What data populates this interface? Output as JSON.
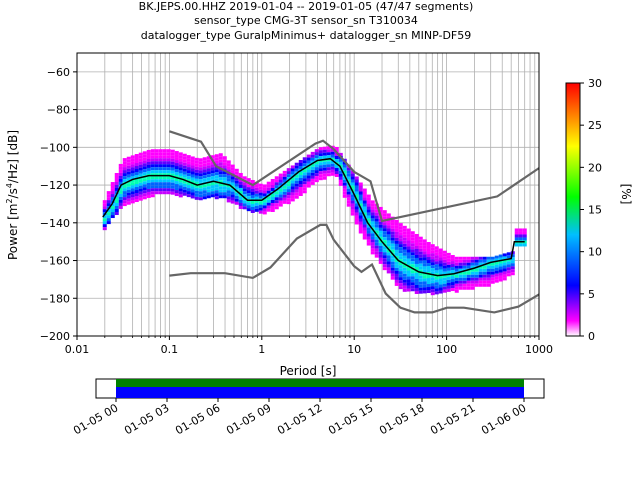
{
  "title_lines": [
    "BK.JEPS.00.HHZ   2019-01-04 -- 2019-01-05  (47/47 segments)",
    "sensor_type CMG-3T sensor_sn T310034",
    "datalogger_type GuralpMinimus+ datalogger_sn MINP-DF59"
  ],
  "chart_data": {
    "type": "heatmap",
    "description_of_axes": "log period vs power",
    "xlabel": "Period [s]",
    "ylabel": "Power [m²/s⁴/Hz] [dB]",
    "xscale": "log",
    "xlim": [
      0.01,
      1000
    ],
    "ylim": [
      -200,
      -50
    ],
    "xticks": [
      {
        "value": 0.01,
        "label": "0.01"
      },
      {
        "value": 0.1,
        "label": "0.1"
      },
      {
        "value": 1,
        "label": "1"
      },
      {
        "value": 10,
        "label": "10"
      },
      {
        "value": 100,
        "label": "100"
      },
      {
        "value": 1000,
        "label": "1000"
      }
    ],
    "yticks": [
      -60,
      -80,
      -100,
      -120,
      -140,
      -160,
      -180,
      -200
    ],
    "grid": true,
    "colorbar": {
      "label": "[%]",
      "min": 0,
      "max": 30,
      "ticks": [
        0,
        5,
        10,
        15,
        20,
        25,
        30
      ],
      "colormap_stops": [
        "#ffffff",
        "#ff00ff",
        "#0000ff",
        "#00bfff",
        "#00ff00",
        "#ffff00",
        "#ff0000"
      ]
    },
    "mean_curve": {
      "color": "#000000",
      "points": [
        [
          0.019,
          -137
        ],
        [
          0.024,
          -130
        ],
        [
          0.03,
          -120
        ],
        [
          0.04,
          -117
        ],
        [
          0.06,
          -115
        ],
        [
          0.1,
          -115
        ],
        [
          0.14,
          -117
        ],
        [
          0.2,
          -120
        ],
        [
          0.3,
          -118
        ],
        [
          0.45,
          -120
        ],
        [
          0.7,
          -128
        ],
        [
          1,
          -128
        ],
        [
          1.5,
          -122
        ],
        [
          2.5,
          -113
        ],
        [
          4,
          -107
        ],
        [
          5.5,
          -106
        ],
        [
          7,
          -110
        ],
        [
          10,
          -125
        ],
        [
          14,
          -140
        ],
        [
          20,
          -150
        ],
        [
          30,
          -160
        ],
        [
          50,
          -166
        ],
        [
          80,
          -168
        ],
        [
          120,
          -167
        ],
        [
          200,
          -164
        ],
        [
          300,
          -161
        ],
        [
          500,
          -159
        ],
        [
          540,
          -150
        ],
        [
          700,
          -150
        ]
      ]
    },
    "density_band": {
      "upper": [
        [
          0.019,
          -128
        ],
        [
          0.03,
          -106
        ],
        [
          0.06,
          -101
        ],
        [
          0.1,
          -101
        ],
        [
          0.2,
          -106
        ],
        [
          0.35,
          -103
        ],
        [
          0.6,
          -115
        ],
        [
          1,
          -120
        ],
        [
          2,
          -110
        ],
        [
          4,
          -100
        ],
        [
          6,
          -99
        ],
        [
          10,
          -115
        ],
        [
          15,
          -128
        ],
        [
          30,
          -140
        ],
        [
          60,
          -150
        ],
        [
          120,
          -158
        ],
        [
          300,
          -158
        ],
        [
          500,
          -155
        ],
        [
          540,
          -143
        ],
        [
          700,
          -143
        ]
      ],
      "lower": [
        [
          0.019,
          -143
        ],
        [
          0.03,
          -130
        ],
        [
          0.06,
          -125
        ],
        [
          0.1,
          -124
        ],
        [
          0.2,
          -127
        ],
        [
          0.35,
          -126
        ],
        [
          0.6,
          -132
        ],
        [
          1,
          -135
        ],
        [
          2,
          -128
        ],
        [
          4,
          -117
        ],
        [
          6,
          -114
        ],
        [
          10,
          -140
        ],
        [
          15,
          -155
        ],
        [
          30,
          -175
        ],
        [
          60,
          -177
        ],
        [
          120,
          -176
        ],
        [
          300,
          -172
        ],
        [
          500,
          -167
        ],
        [
          540,
          -152
        ],
        [
          700,
          -152
        ]
      ]
    },
    "noise_models": {
      "color": "#666666",
      "high": [
        [
          0.1,
          -91.5
        ],
        [
          0.22,
          -97
        ],
        [
          0.32,
          -110
        ],
        [
          0.8,
          -120
        ],
        [
          3.8,
          -98
        ],
        [
          4.6,
          -96.5
        ],
        [
          6,
          -101
        ],
        [
          10,
          -113
        ],
        [
          15,
          -118
        ],
        [
          20,
          -139
        ],
        [
          354,
          -126
        ],
        [
          1000,
          -111
        ]
      ],
      "low": [
        [
          0.1,
          -168
        ],
        [
          0.17,
          -166.7
        ],
        [
          0.4,
          -166.7
        ],
        [
          0.8,
          -169.2
        ],
        [
          1.24,
          -163.7
        ],
        [
          2.4,
          -148.3
        ],
        [
          4.3,
          -141.1
        ],
        [
          5,
          -141.1
        ],
        [
          6,
          -149
        ],
        [
          10,
          -163
        ],
        [
          12,
          -166
        ],
        [
          15.6,
          -162.1
        ],
        [
          21.9,
          -177.5
        ],
        [
          31.6,
          -185
        ],
        [
          45,
          -187.5
        ],
        [
          70,
          -187.5
        ],
        [
          101,
          -185
        ],
        [
          154,
          -185
        ],
        [
          328,
          -187.5
        ],
        [
          600,
          -184.4
        ],
        [
          1000,
          -178
        ]
      ]
    }
  },
  "timeline": {
    "tick_labels": [
      "01-05 00",
      "01-05 03",
      "01-05 06",
      "01-05 09",
      "01-05 12",
      "01-05 15",
      "01-05 18",
      "01-05 21",
      "01-06 00"
    ],
    "coverage_color_top": "#008000",
    "coverage_color_bottom": "#0000ff"
  }
}
